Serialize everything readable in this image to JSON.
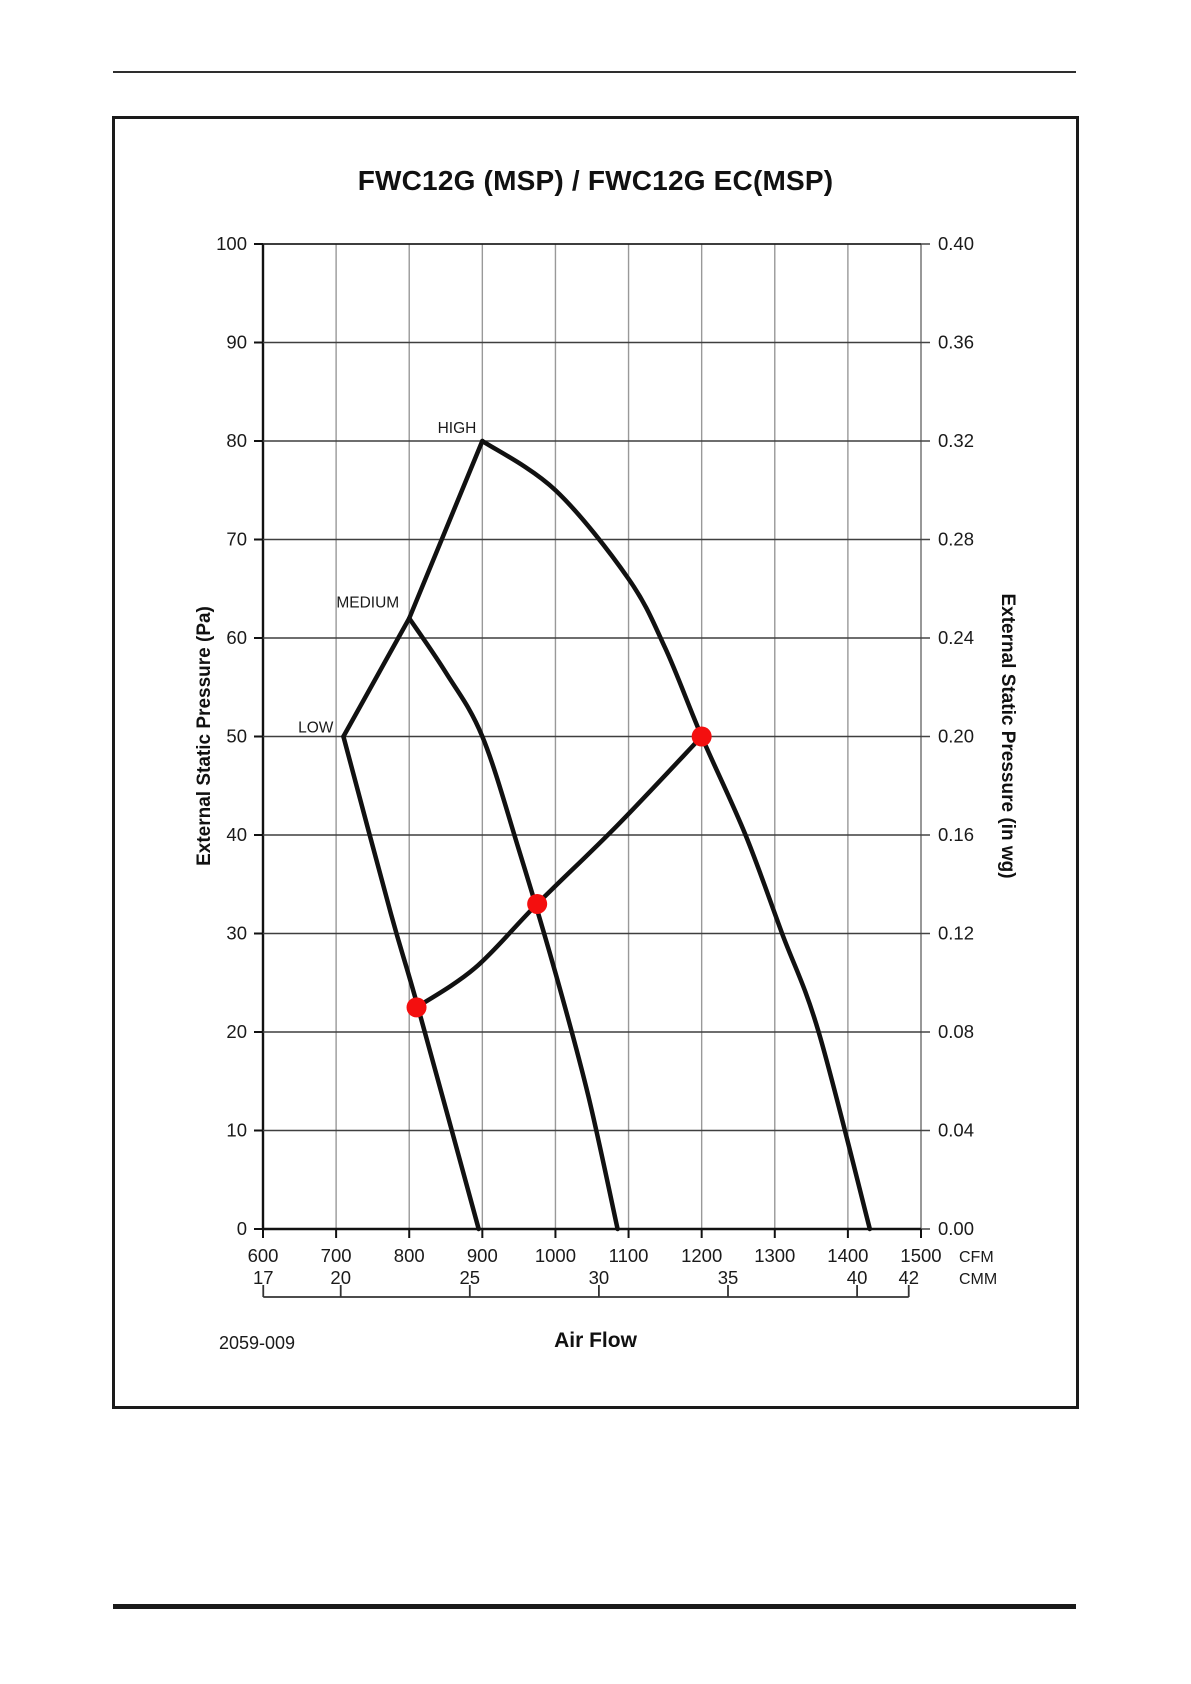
{
  "page": {
    "footnote": "2059-009"
  },
  "chart": {
    "type": "line",
    "title": "FWC12G (MSP) / FWC12G EC(MSP)",
    "xlabel": "Air Flow",
    "ylabel_left": "External Static Pressure (Pa)",
    "ylabel_right": "External Static Pressure (in wg)",
    "chart_data": {
      "type": "line",
      "title": "FWC12G (MSP) / FWC12G EC(MSP)",
      "xlabel": "Air Flow",
      "ylabel": "External Static Pressure",
      "x_unit_primary": "CFM",
      "x_unit_secondary": "CMM",
      "x_range_cfm": [
        600,
        1500
      ],
      "y_range_pa": [
        0,
        100
      ],
      "y_range_inwg": [
        0.0,
        0.4
      ],
      "grid": true
    },
    "axes": {
      "left": {
        "ticks": [
          0,
          10,
          20,
          30,
          40,
          50,
          60,
          70,
          80,
          90,
          100
        ]
      },
      "right": {
        "ticks": [
          "0.00",
          "0.04",
          "0.08",
          "0.12",
          "0.16",
          "0.20",
          "0.24",
          "0.28",
          "0.32",
          "0.36",
          "0.40"
        ]
      },
      "bottom": {
        "cfm_ticks": [
          600,
          700,
          800,
          900,
          1000,
          1100,
          1200,
          1300,
          1400,
          1500
        ],
        "cfm_unit": "CFM",
        "cmm_ticks": [
          17,
          20,
          25,
          30,
          35,
          40,
          42
        ],
        "cmm_unit": "CMM"
      }
    },
    "series": [
      {
        "name": "low-speed-curve",
        "label": "LOW",
        "shape": "smooth",
        "points": [
          [
            710,
            50
          ],
          [
            775,
            32
          ],
          [
            812,
            22.5
          ],
          [
            895,
            0
          ]
        ]
      },
      {
        "name": "medium-speed-curve",
        "label": "MEDIUM",
        "shape": "smooth",
        "points": [
          [
            800,
            62
          ],
          [
            850,
            56.5
          ],
          [
            900,
            50
          ],
          [
            950,
            38.5
          ],
          [
            1000,
            26
          ],
          [
            1045,
            13.5
          ],
          [
            1085,
            0
          ]
        ]
      },
      {
        "name": "high-speed-curve",
        "label": "HIGH",
        "shape": "smooth",
        "points": [
          [
            900,
            80
          ],
          [
            1000,
            75
          ],
          [
            1100,
            66
          ],
          [
            1150,
            59
          ],
          [
            1200,
            50
          ],
          [
            1260,
            40
          ],
          [
            1310,
            30
          ],
          [
            1360,
            20
          ],
          [
            1430,
            0
          ]
        ]
      },
      {
        "name": "max-pressure-locus",
        "label": "",
        "shape": "polyline",
        "points": [
          [
            710,
            50
          ],
          [
            800,
            62
          ],
          [
            900,
            80
          ]
        ]
      },
      {
        "name": "system-curve",
        "label": "",
        "shape": "smooth",
        "points": [
          [
            810,
            22.5
          ],
          [
            890,
            26.5
          ],
          [
            975,
            33
          ],
          [
            1085,
            41
          ],
          [
            1200,
            50
          ]
        ]
      }
    ],
    "operating_points": [
      {
        "cfm": 810,
        "pa": 22.5
      },
      {
        "cfm": 975,
        "pa": 33
      },
      {
        "cfm": 1200,
        "pa": 50
      }
    ],
    "colors": {
      "curve": "#111111",
      "operating_dot": "#f40f0f",
      "grid_horizontal": "#3f3f3f",
      "grid_vertical": "#999999",
      "axis": "#111111"
    }
  }
}
